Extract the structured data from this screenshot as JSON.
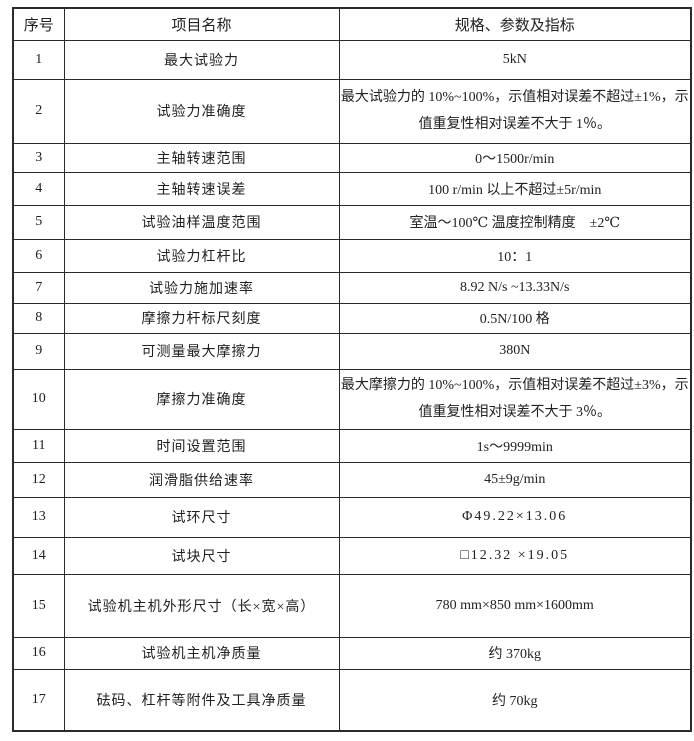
{
  "page": {
    "background_color": "#ffffff",
    "border_color": "#2b2b2b",
    "text_color": "#212121"
  },
  "table": {
    "headers": {
      "no": "序号",
      "item": "项目名称",
      "spec": "规格、参数及指标"
    },
    "rows": [
      {
        "no": "1",
        "item": "最大试验力",
        "spec": "5kN"
      },
      {
        "no": "2",
        "item": "试验力准确度",
        "spec": "最大试验力的 10%~100%，示值相对误差不超过±1%，示值重复性相对误差不大于 1％。"
      },
      {
        "no": "3",
        "item": "主轴转速范围",
        "spec": "0～1500r/min"
      },
      {
        "no": "4",
        "item": "主轴转速误差",
        "spec": "100 r/min 以上不超过±5r/min"
      },
      {
        "no": "5",
        "item": "试验油样温度范围",
        "spec": "室温～100℃ 温度控制精度　±2℃"
      },
      {
        "no": "6",
        "item": "试验力杠杆比",
        "spec": "10：1"
      },
      {
        "no": "7",
        "item": "试验力施加速率",
        "spec": "8.92 N/s ~13.33N/s"
      },
      {
        "no": "8",
        "item": "摩擦力杆标尺刻度",
        "spec": "0.5N/100 格"
      },
      {
        "no": "9",
        "item": "可测量最大摩擦力",
        "spec": "380N"
      },
      {
        "no": "10",
        "item": "摩擦力准确度",
        "spec": "最大摩擦力的 10%~100%，示值相对误差不超过±3%，示值重复性相对误差不大于 3％。"
      },
      {
        "no": "11",
        "item": "时间设置范围",
        "spec": "1s～9999min"
      },
      {
        "no": "12",
        "item": "润滑脂供给速率",
        "spec": "45±9g/min"
      },
      {
        "no": "13",
        "item": "试环尺寸",
        "spec": "Φ49.22×13.06"
      },
      {
        "no": "14",
        "item": "试块尺寸",
        "spec": "□12.32 ×19.05"
      },
      {
        "no": "15",
        "item": "试验机主机外形尺寸（长×宽×高）",
        "spec": "780 mm×850 mm×1600mm"
      },
      {
        "no": "16",
        "item": "试验机主机净质量",
        "spec": "约 370kg"
      },
      {
        "no": "17",
        "item": "砝码、杠杆等附件及工具净质量",
        "spec": "约 70kg"
      }
    ]
  }
}
